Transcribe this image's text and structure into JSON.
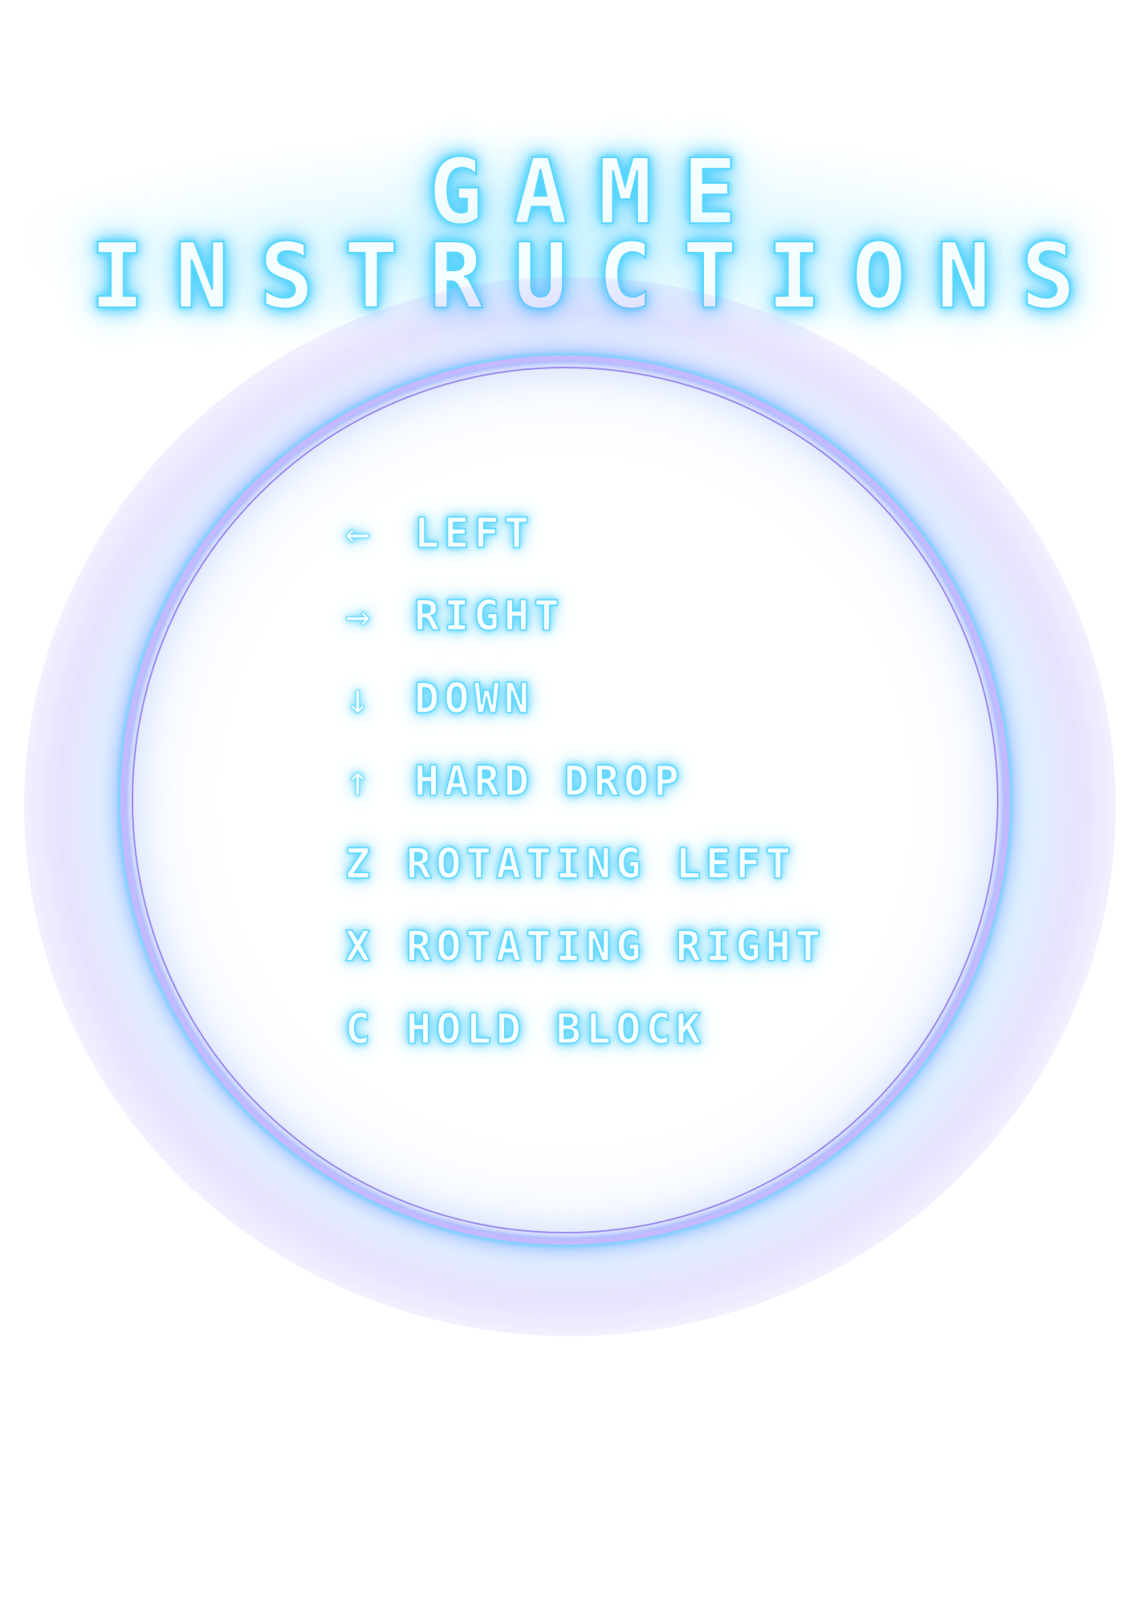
{
  "title": {
    "line1": "GAME",
    "line2": "INSTRUCTIONS"
  },
  "controls": [
    {
      "key": "←",
      "label": "LEFT"
    },
    {
      "key": "→",
      "label": "RIGHT"
    },
    {
      "key": "↓",
      "label": "DOWN"
    },
    {
      "key": "↑",
      "label": "HARD DROP"
    },
    {
      "key": "Z",
      "label": "ROTATING LEFT"
    },
    {
      "key": "X",
      "label": "ROTATING RIGHT"
    },
    {
      "key": "C",
      "label": "HOLD BLOCK"
    }
  ],
  "colors": {
    "title_glow": "#3fd2ff",
    "text_fill": "#f4fdff",
    "ring_cyan": "#5ad2ff",
    "ring_violet": "#7a5ae6",
    "background": "#ffffff"
  }
}
